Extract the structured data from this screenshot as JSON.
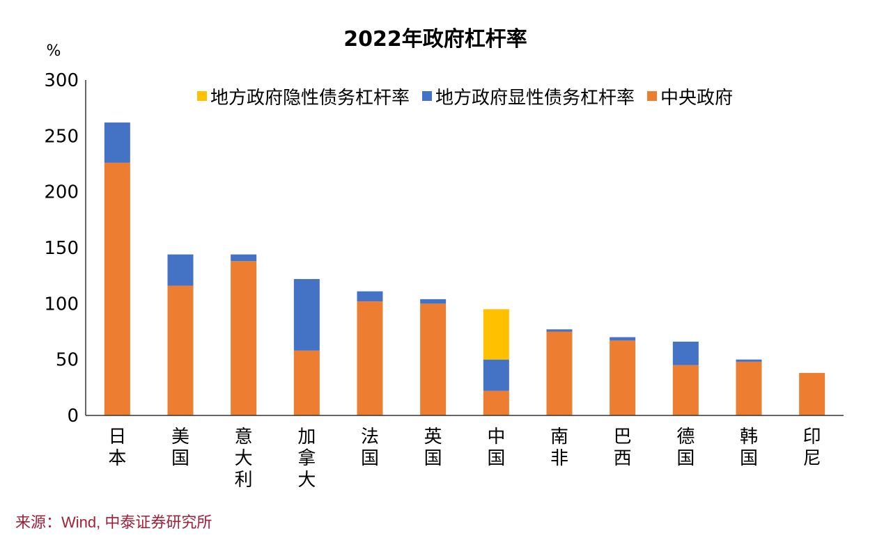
{
  "chart_data": {
    "type": "bar",
    "stacked": true,
    "title": "2022年政府杠杆率",
    "ylabel": "%",
    "xlabel": "",
    "ylim": [
      0,
      300
    ],
    "yticks": [
      0,
      50,
      100,
      150,
      200,
      250,
      300
    ],
    "legend_position": "top-right",
    "categories": [
      "日本",
      "美国",
      "意大利",
      "加拿大",
      "法国",
      "英国",
      "中国",
      "南非",
      "巴西",
      "德国",
      "韩国",
      "印尼"
    ],
    "series": [
      {
        "name": "中央政府",
        "color": "#ED7D31",
        "values": [
          226,
          116,
          138,
          58,
          102,
          100,
          22,
          75,
          67,
          45,
          48,
          38
        ]
      },
      {
        "name": "地方政府显性债务杠杆率",
        "color": "#4472C4",
        "values": [
          36,
          28,
          6,
          64,
          9,
          4,
          28,
          2,
          3,
          21,
          2,
          0
        ]
      },
      {
        "name": "地方政府隐性债务杠杆率",
        "color": "#FFC000",
        "values": [
          0,
          0,
          0,
          0,
          0,
          0,
          45,
          0,
          0,
          0,
          0,
          0
        ]
      }
    ],
    "legend_order": [
      2,
      1,
      0
    ]
  },
  "source": "来源：Wind, 中泰证券研究所"
}
